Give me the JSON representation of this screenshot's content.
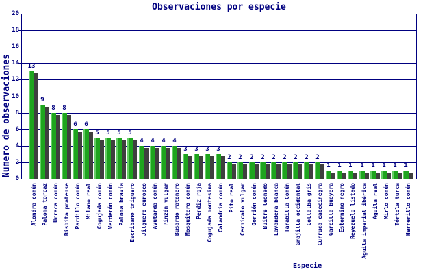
{
  "chart_data": {
    "type": "bar",
    "title": "Observaciones por especie",
    "xlabel": "Especie",
    "ylabel": "Numero de observaciones",
    "ylim": [
      0,
      20
    ],
    "ytick_step": 2,
    "grid": true,
    "legend": null,
    "categories": [
      "Alondra común",
      "Paloma torcaz",
      "Urraca común",
      "Bisbita pratense",
      "Pardillo común",
      "Milano real",
      "Cogujada común",
      "Verderón común",
      "Paloma bravía",
      "Escribano triguero",
      "Jilguero europeo",
      "Avutarda común",
      "Pinzón vulgar",
      "Busardo ratonero",
      "Mosquitero común",
      "Perdiz roja",
      "Cogujada montesina",
      "Calandria común",
      "Pito real",
      "Cernícalo vulgar",
      "Gorrión común",
      "Buitre leonado",
      "Lavandera blanca",
      "Tarabilla Común",
      "Grajilla occidental",
      "Collalba gris",
      "Curruca cabecinegra",
      "Garcilla bueyera",
      "Estornino negro",
      "Reyezuelo listado",
      "Águila imperial ibérica",
      "Águila real",
      "Mirlo común",
      "Tórtola turca",
      "Herrerillo común"
    ],
    "values": [
      13,
      9,
      8,
      8,
      6,
      6,
      5,
      5,
      5,
      5,
      4,
      4,
      4,
      4,
      3,
      3,
      3,
      3,
      2,
      2,
      2,
      2,
      2,
      2,
      2,
      2,
      2,
      1,
      1,
      1,
      1,
      1,
      1,
      1,
      1
    ],
    "colors": {
      "bar": "#1EA41E",
      "bar_highlight": "#66CE66",
      "bar_shadow": "#3F3F3F",
      "text": "#000080",
      "grid": "#000080",
      "background": "#FFFFFF"
    }
  }
}
